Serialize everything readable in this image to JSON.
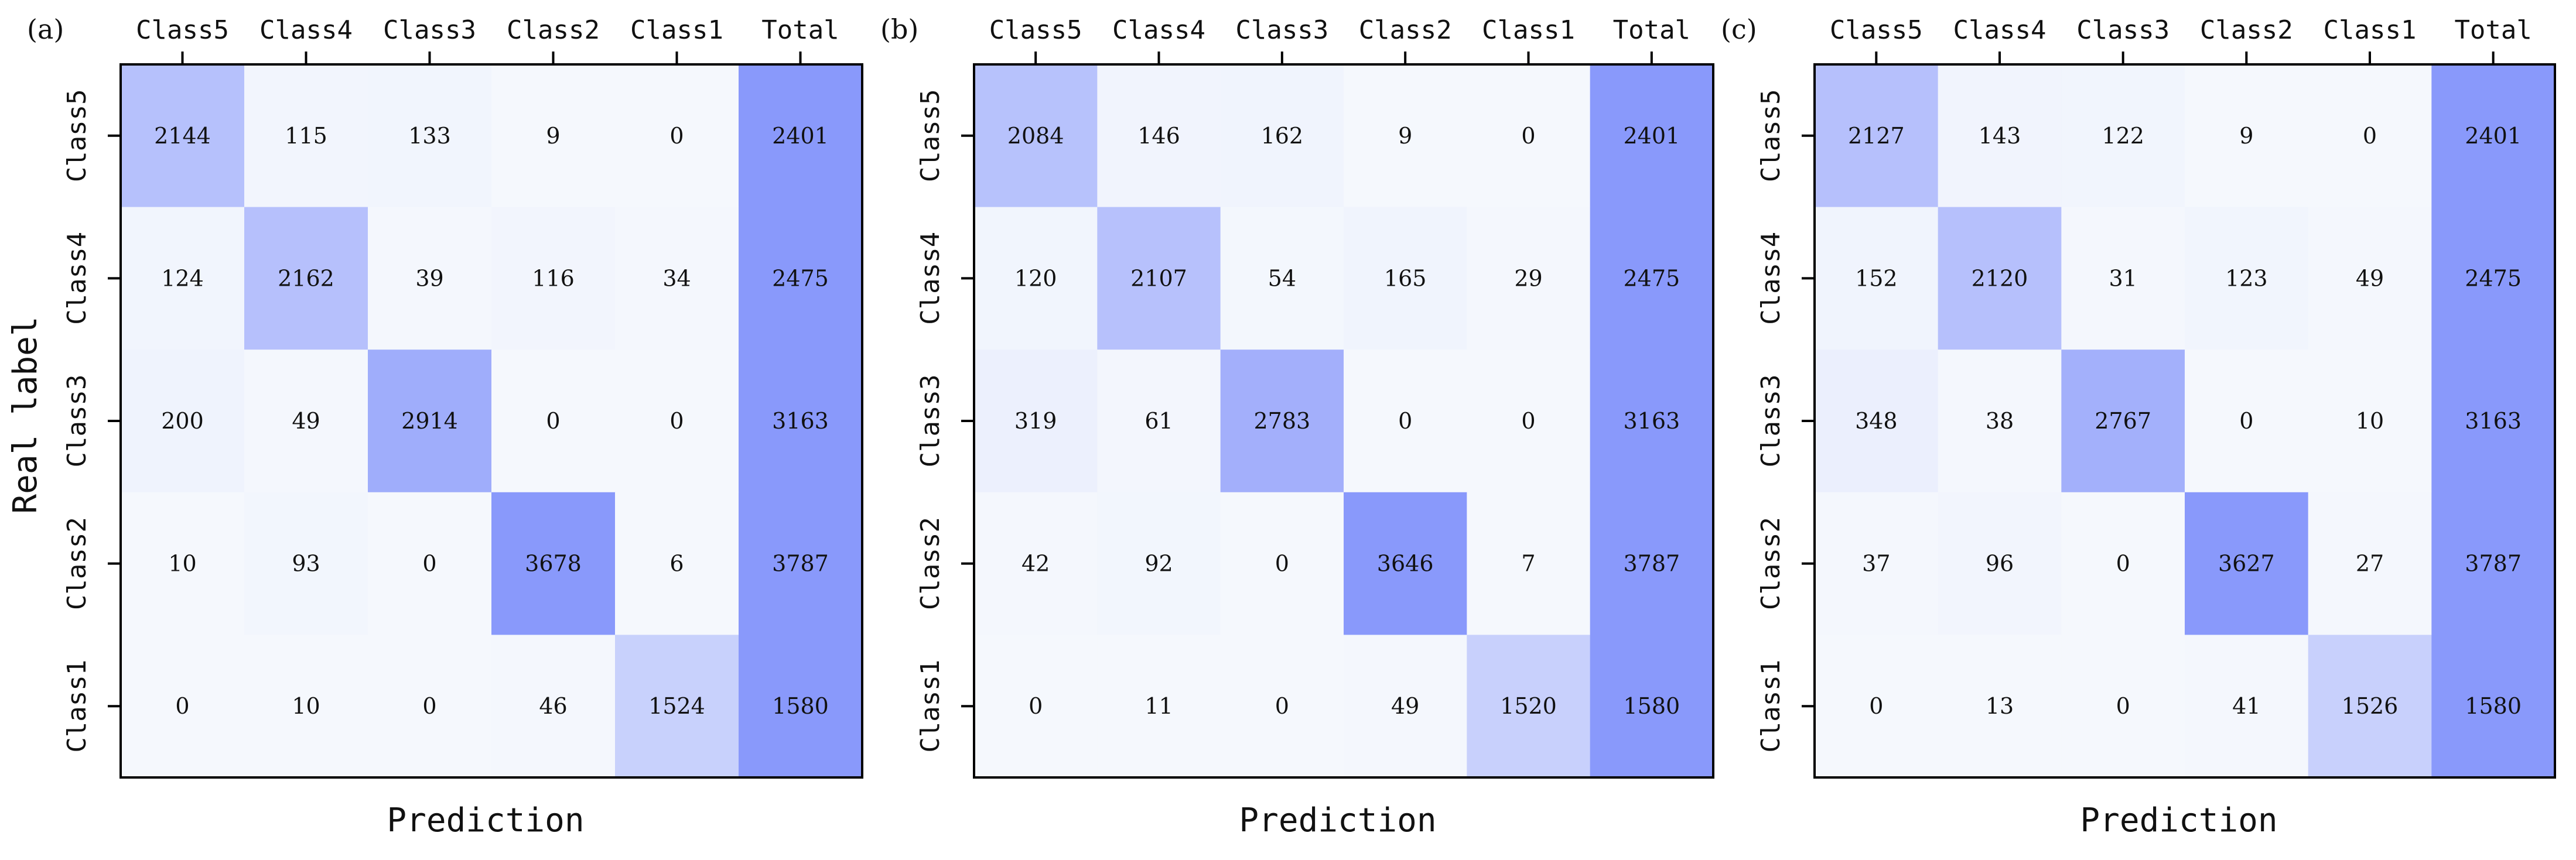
{
  "chart_data": [
    {
      "type": "heatmap",
      "panel_label": "(a)",
      "x_categories": [
        "Class5",
        "Class4",
        "Class3",
        "Class2",
        "Class1",
        "Total"
      ],
      "y_categories": [
        "Class5",
        "Class4",
        "Class3",
        "Class2",
        "Class1"
      ],
      "xlabel": "Prediction",
      "ylabel": "Real label",
      "values": [
        [
          2144,
          115,
          133,
          9,
          0,
          2401
        ],
        [
          124,
          2162,
          39,
          116,
          34,
          2475
        ],
        [
          200,
          49,
          2914,
          0,
          0,
          3163
        ],
        [
          10,
          93,
          0,
          3678,
          6,
          3787
        ],
        [
          0,
          10,
          0,
          46,
          1524,
          1580
        ]
      ]
    },
    {
      "type": "heatmap",
      "panel_label": "(b)",
      "x_categories": [
        "Class5",
        "Class4",
        "Class3",
        "Class2",
        "Class1",
        "Total"
      ],
      "y_categories": [
        "Class5",
        "Class4",
        "Class3",
        "Class2",
        "Class1"
      ],
      "xlabel": "Prediction",
      "ylabel": "",
      "values": [
        [
          2084,
          146,
          162,
          9,
          0,
          2401
        ],
        [
          120,
          2107,
          54,
          165,
          29,
          2475
        ],
        [
          319,
          61,
          2783,
          0,
          0,
          3163
        ],
        [
          42,
          92,
          0,
          3646,
          7,
          3787
        ],
        [
          0,
          11,
          0,
          49,
          1520,
          1580
        ]
      ]
    },
    {
      "type": "heatmap",
      "panel_label": "(c)",
      "x_categories": [
        "Class5",
        "Class4",
        "Class3",
        "Class2",
        "Class1",
        "Total"
      ],
      "y_categories": [
        "Class5",
        "Class4",
        "Class3",
        "Class2",
        "Class1"
      ],
      "xlabel": "Prediction",
      "ylabel": "",
      "values": [
        [
          2127,
          143,
          122,
          9,
          0,
          2401
        ],
        [
          152,
          2120,
          31,
          123,
          49,
          2475
        ],
        [
          348,
          38,
          2767,
          0,
          10,
          3163
        ],
        [
          37,
          96,
          0,
          3627,
          27,
          3787
        ],
        [
          0,
          13,
          0,
          41,
          1526,
          1580
        ]
      ]
    }
  ],
  "colors": {
    "cell_low": "#f5f8fd",
    "cell_high": "#8999fb",
    "text": "#111111",
    "axis": "#000000"
  }
}
